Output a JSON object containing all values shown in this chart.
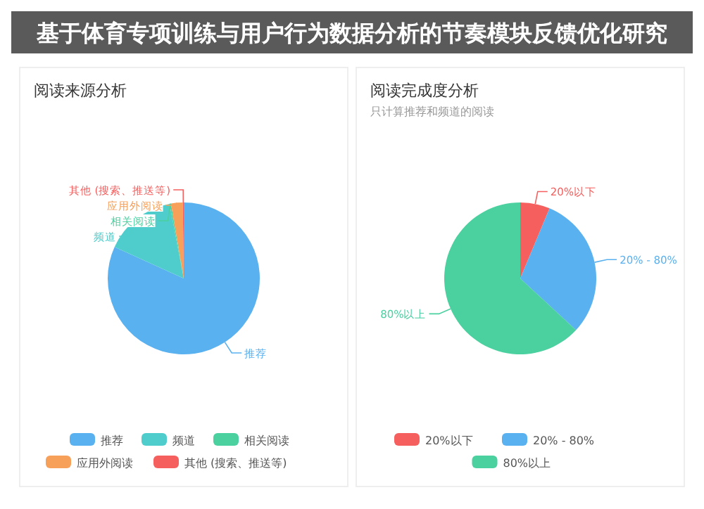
{
  "chart_data": [
    {
      "type": "pie",
      "title": "阅读来源分析",
      "annotations": [
        "基于体育专项训练与用户行为数据分析的节奏模块反馈优化研究"
      ],
      "categories": [
        "推荐",
        "频道",
        "相关阅读",
        "应用外阅读",
        "其他 (搜索、推送等)"
      ],
      "values": [
        81.8,
        15.2,
        0.3,
        2.5,
        0.2
      ],
      "colors": [
        "#5ab1ef",
        "#4ecdcc",
        "#4bd0a0",
        "#f6a05a",
        "#f5605f"
      ],
      "legend": "bottom"
    },
    {
      "type": "pie",
      "title": "阅读完成度分析",
      "subtitle": "只计算推荐和频道的阅读",
      "categories": [
        "20%以下",
        "20% - 80%",
        "80%以上"
      ],
      "values": [
        6.3,
        30.6,
        63.1
      ],
      "colors": [
        "#f5605f",
        "#5ab1ef",
        "#4bd0a0"
      ],
      "legend": "bottom"
    }
  ]
}
